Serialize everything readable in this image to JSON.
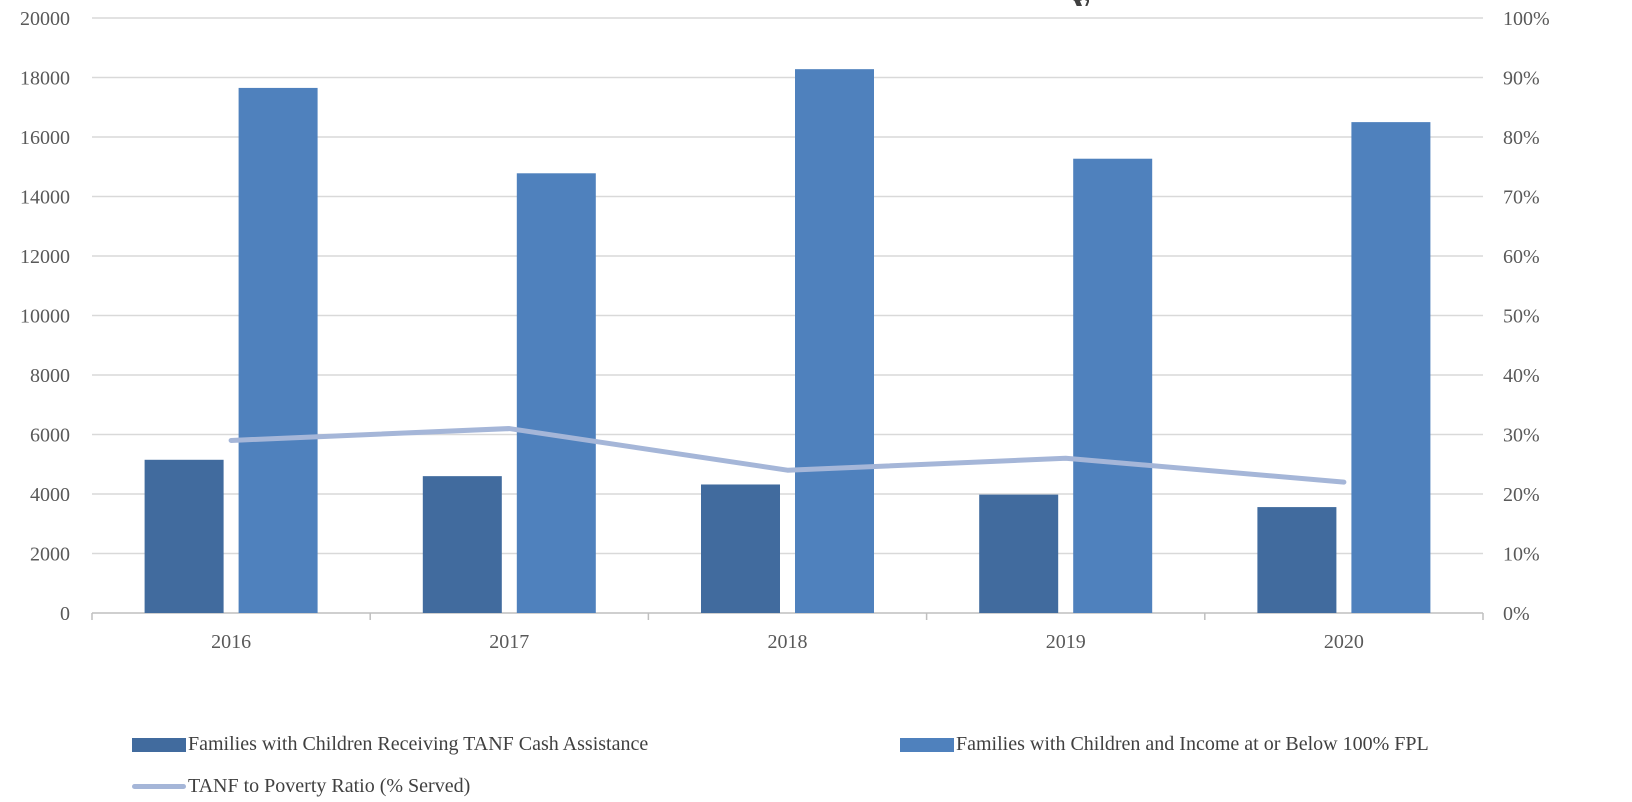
{
  "chart_data": {
    "type": "bar",
    "categories": [
      "2016",
      "2017",
      "2018",
      "2019",
      "2020"
    ],
    "series": [
      {
        "name": "Families with Children Receiving TANF Cash Assistance",
        "type": "bar",
        "axis": "left",
        "color": "#416B9E",
        "values": [
          5150,
          4600,
          4320,
          3980,
          3560
        ]
      },
      {
        "name": "Families with Children and Income at or Below 100% FPL",
        "type": "bar",
        "axis": "left",
        "color": "#4F81BD",
        "values": [
          17650,
          14780,
          18280,
          15270,
          16500
        ]
      },
      {
        "name": "TANF to Poverty Ratio (% Served)",
        "type": "line",
        "axis": "right",
        "color": "#A5B6D8",
        "values": [
          29,
          31,
          24,
          26,
          22
        ]
      }
    ],
    "y_left": {
      "ylim": [
        0,
        20000
      ],
      "ticks": [
        "0",
        "2000",
        "4000",
        "6000",
        "8000",
        "10000",
        "12000",
        "14000",
        "16000",
        "18000",
        "20000"
      ]
    },
    "y_right": {
      "ylim": [
        0,
        100
      ],
      "ticks": [
        "0%",
        "10%",
        "20%",
        "30%",
        "40%",
        "50%",
        "60%",
        "70%",
        "80%",
        "90%",
        "100%"
      ]
    },
    "grid": true,
    "legend_position": "bottom"
  }
}
